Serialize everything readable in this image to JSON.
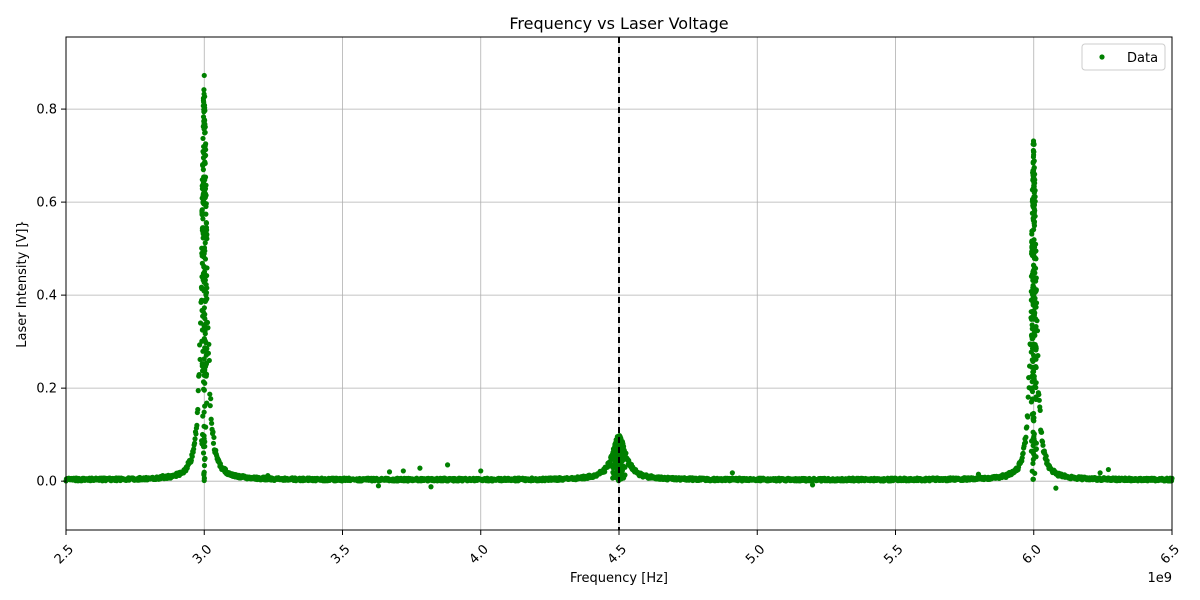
{
  "chart_data": {
    "type": "scatter",
    "title": "Frequency vs Laser Voltage",
    "xlabel": "Frequency [Hz]",
    "ylabel": "Laser Intensity [V]}",
    "x_offset_label": "1e9",
    "xlim": [
      2.5,
      6.5
    ],
    "ylim": [
      -0.105,
      0.955
    ],
    "x_scale_factor": 1000000000,
    "x_ticks": [
      2.5,
      3.0,
      3.5,
      4.0,
      4.5,
      5.0,
      5.5,
      6.0,
      6.5
    ],
    "x_tick_labels": [
      "2.5",
      "3.0",
      "3.5",
      "4.0",
      "4.5",
      "5.0",
      "5.5",
      "6.0",
      "6.5"
    ],
    "y_ticks": [
      0.0,
      0.2,
      0.4,
      0.6,
      0.8
    ],
    "y_tick_labels": [
      "0.0",
      "0.2",
      "0.4",
      "0.6",
      "0.8"
    ],
    "grid": true,
    "legend_position": "upper right",
    "series": [
      {
        "name": "Data",
        "color": "#008000",
        "baseline": 0.003,
        "baseline_noise": 0.006,
        "peaks": [
          {
            "center": 3.0,
            "height": 0.87,
            "width": 0.012
          },
          {
            "center": 4.5,
            "height": 0.1,
            "width": 0.03
          },
          {
            "center": 6.0,
            "height": 0.735,
            "width": 0.012
          }
        ],
        "outliers": [
          {
            "x": 3.88,
            "y": 0.035
          },
          {
            "x": 3.78,
            "y": 0.028
          },
          {
            "x": 4.0,
            "y": 0.022
          },
          {
            "x": 3.67,
            "y": 0.02
          },
          {
            "x": 3.72,
            "y": 0.022
          },
          {
            "x": 4.91,
            "y": 0.018
          },
          {
            "x": 6.24,
            "y": 0.018
          },
          {
            "x": 6.27,
            "y": 0.025
          },
          {
            "x": 3.82,
            "y": -0.012
          },
          {
            "x": 6.08,
            "y": -0.015
          },
          {
            "x": 3.63,
            "y": -0.01
          },
          {
            "x": 5.2,
            "y": -0.008
          },
          {
            "x": 5.8,
            "y": 0.015
          },
          {
            "x": 2.85,
            "y": 0.012
          },
          {
            "x": 3.23,
            "y": 0.012
          }
        ]
      }
    ],
    "vertical_line": {
      "x": 4.5,
      "color": "#000000",
      "style": "dashed"
    }
  }
}
